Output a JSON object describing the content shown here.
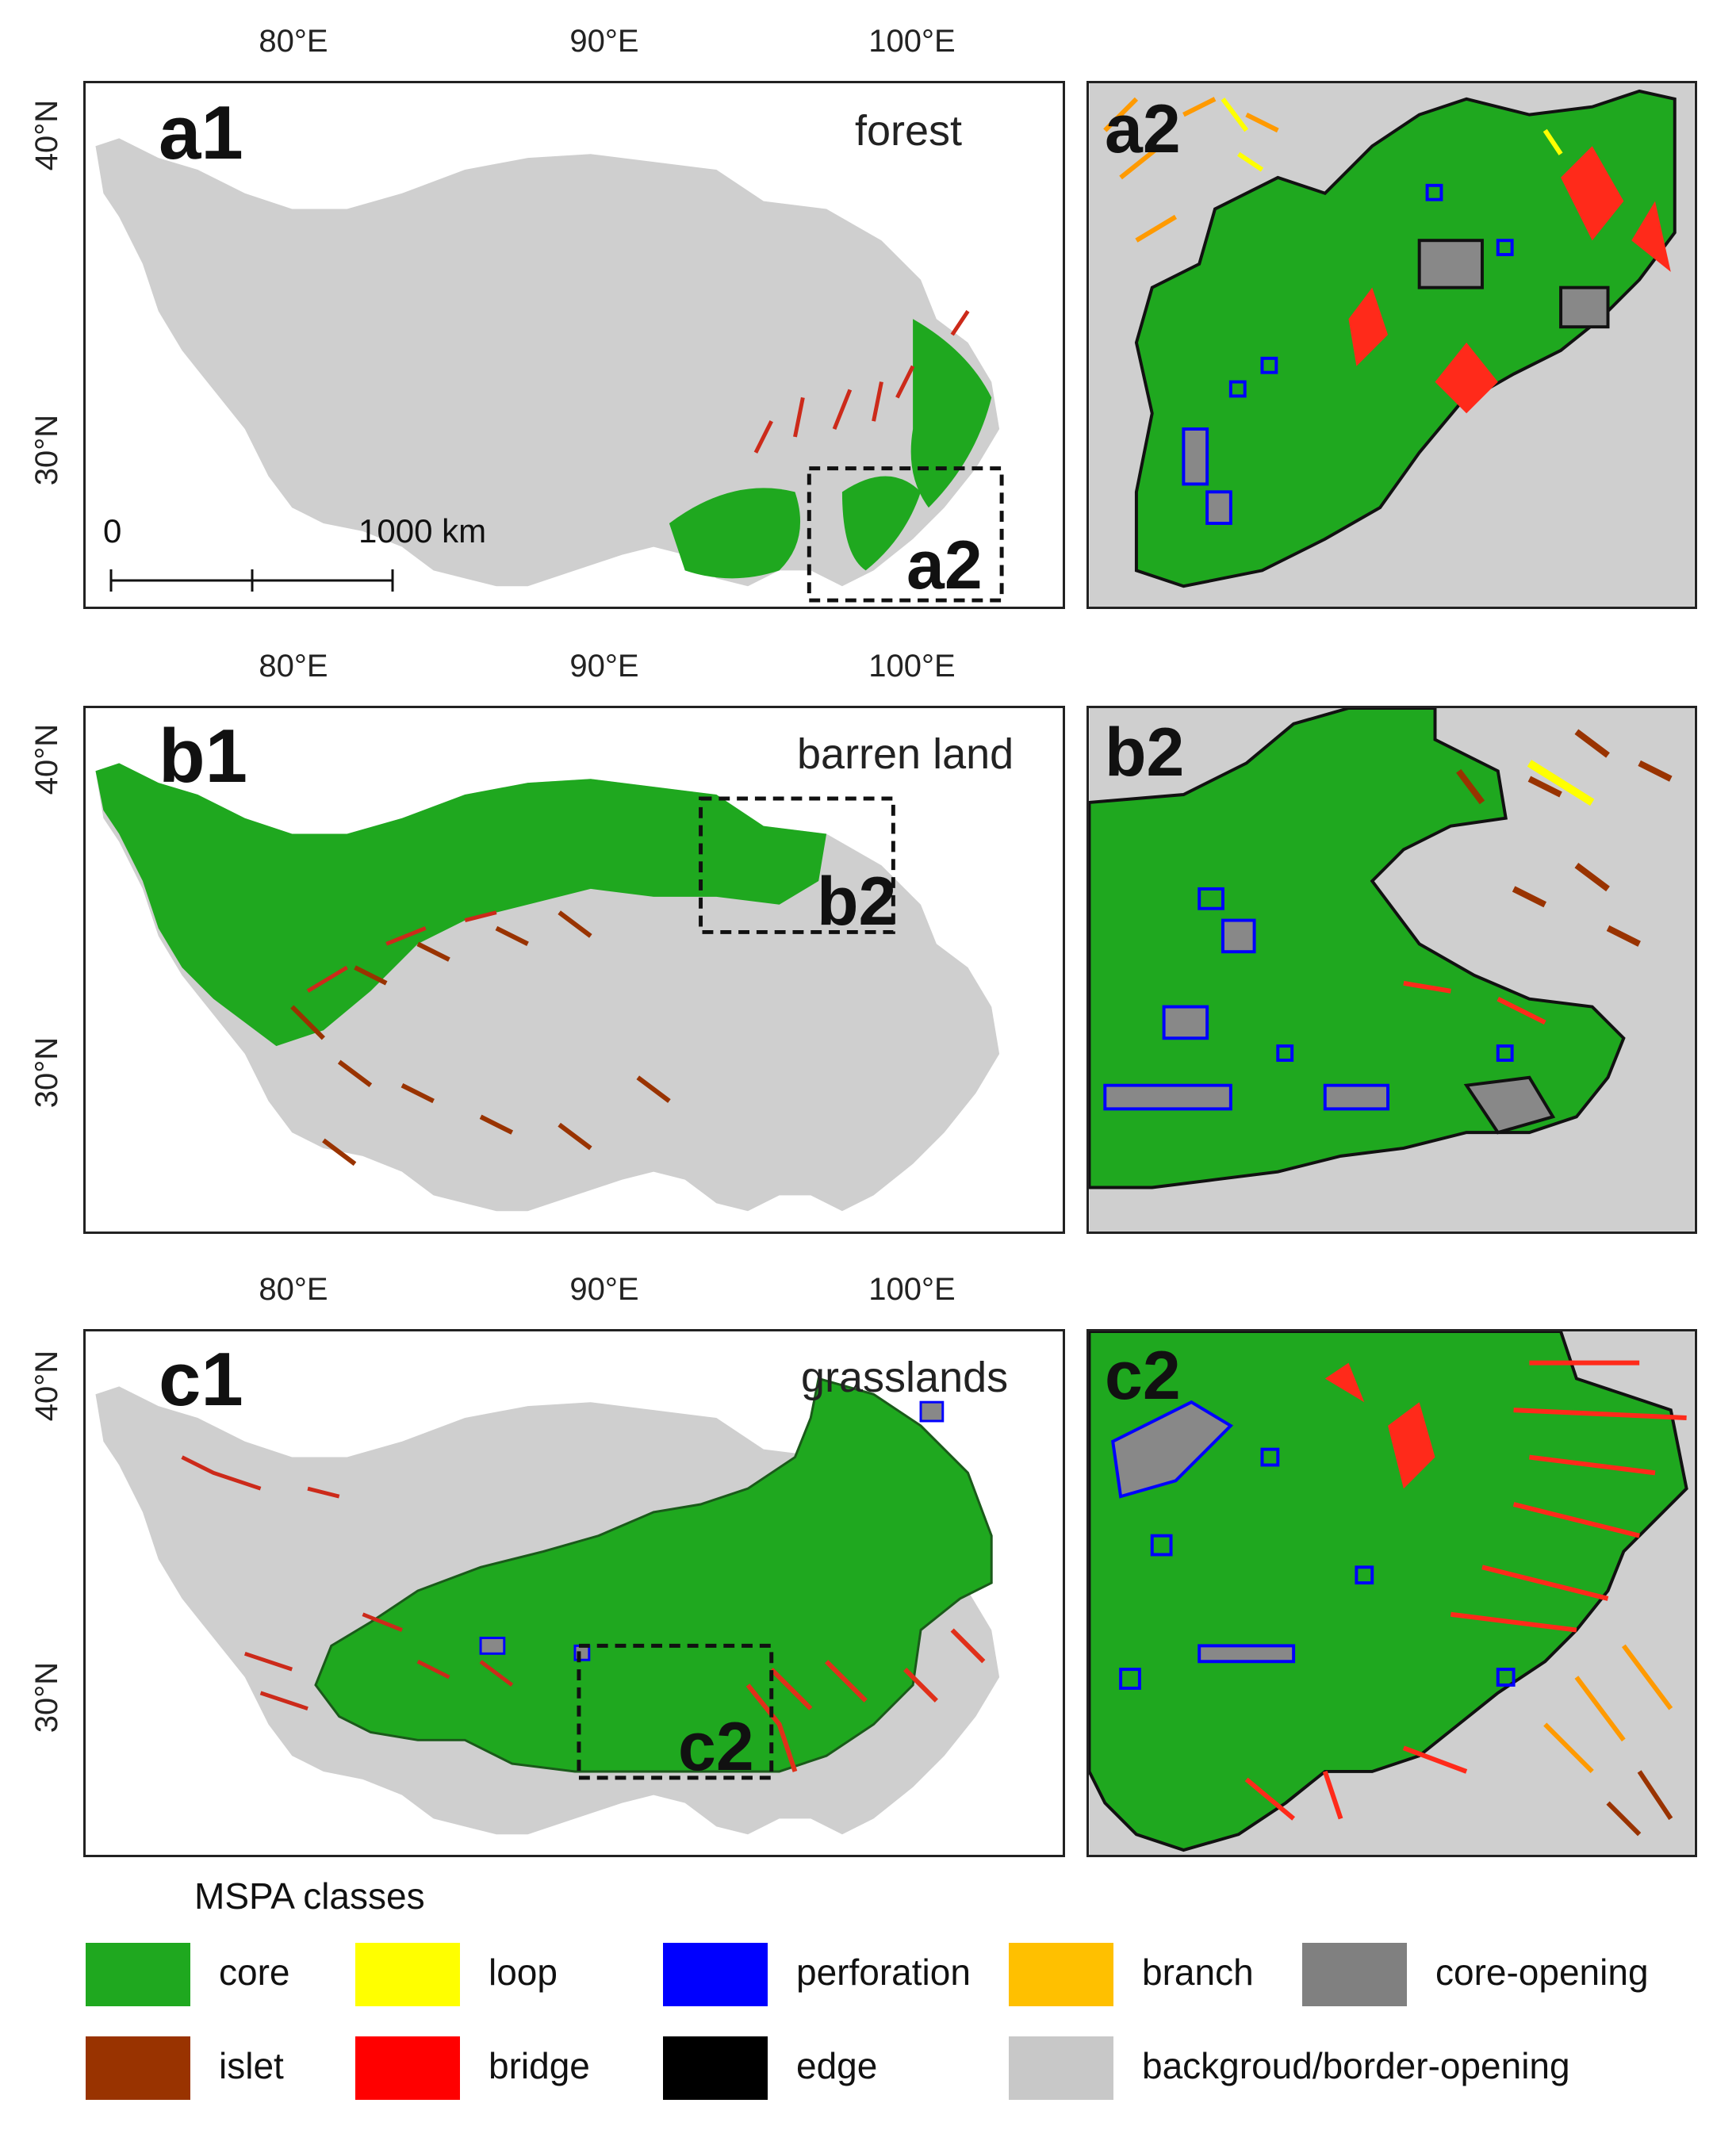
{
  "map_axes": {
    "lon_ticks": [
      "80°E",
      "90°E",
      "100°E"
    ],
    "lat_ticks": [
      "40°N",
      "30°N"
    ]
  },
  "panels": [
    {
      "id": "a1",
      "label": "a1",
      "title": "forest",
      "inset_label": "a2"
    },
    {
      "id": "b1",
      "label": "b1",
      "title": "barren land",
      "inset_label": "b2"
    },
    {
      "id": "c1",
      "label": "c1",
      "title": "grasslands",
      "inset_label": "c2"
    }
  ],
  "zooms": [
    {
      "id": "a2",
      "label": "a2"
    },
    {
      "id": "b2",
      "label": "b2"
    },
    {
      "id": "c2",
      "label": "c2"
    }
  ],
  "scalebar": {
    "start": "0",
    "end": "1000 km"
  },
  "legend": {
    "title": "MSPA classes",
    "items": [
      {
        "name": "core",
        "color": "#1fa81f"
      },
      {
        "name": "loop",
        "color": "#ffff00"
      },
      {
        "name": "perforation",
        "color": "#0000ff"
      },
      {
        "name": "branch",
        "color": "#ffc000"
      },
      {
        "name": "core-opening",
        "color": "#808080"
      },
      {
        "name": "islet",
        "color": "#993300"
      },
      {
        "name": "bridge",
        "color": "#ff0000"
      },
      {
        "name": "edge",
        "color": "#000000"
      },
      {
        "name": "backgroud/border-opening",
        "color": "#c8c8c8"
      }
    ]
  }
}
